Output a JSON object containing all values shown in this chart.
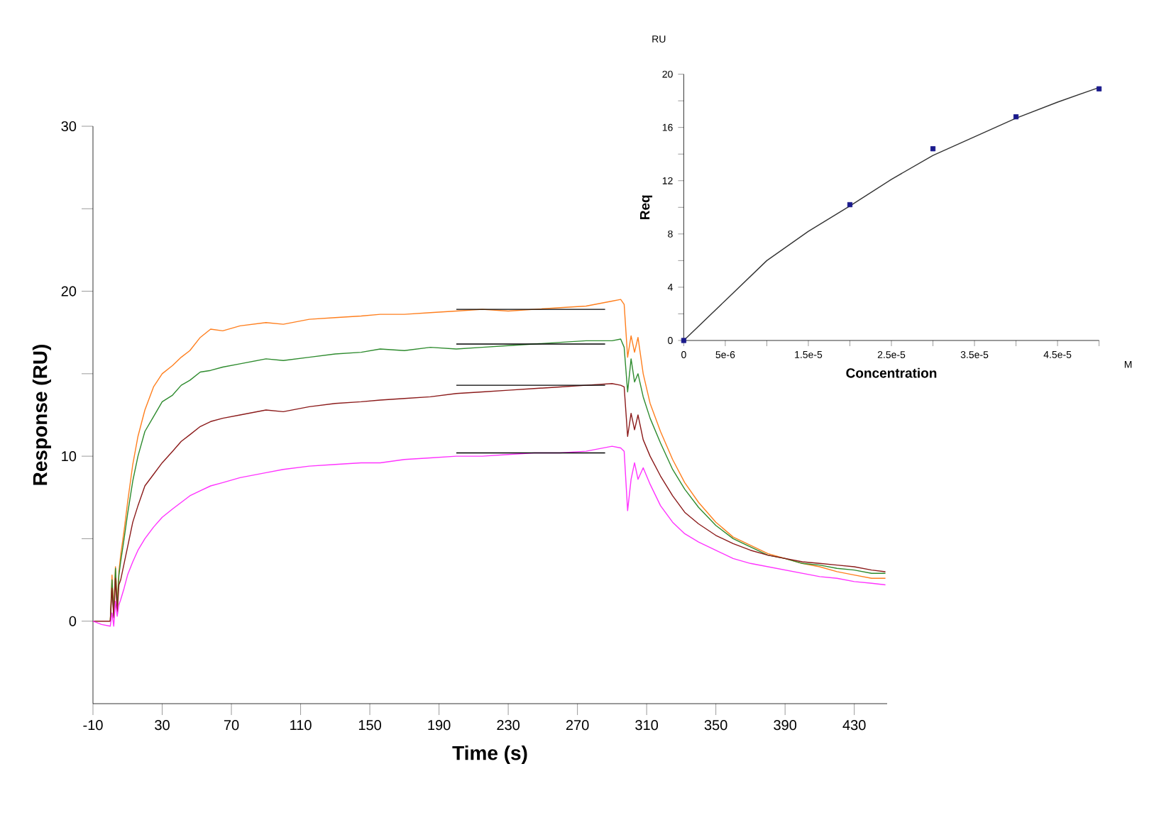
{
  "chart_data": [
    {
      "type": "line",
      "xlabel": "Time (s)",
      "ylabel": "Response (RU)",
      "xlim": [
        -10,
        449
      ],
      "ylim": [
        -5,
        30
      ],
      "xticks": [
        -10,
        30,
        70,
        110,
        150,
        190,
        230,
        270,
        310,
        350,
        390,
        430
      ],
      "yticks": [
        0,
        {
          "value": 5,
          "label": null
        },
        10,
        {
          "value": 15,
          "label": null
        },
        20,
        {
          "value": 25,
          "label": null
        },
        30
      ],
      "x": [
        -10,
        -5,
        0,
        1,
        2,
        3,
        4,
        5,
        6,
        8,
        10,
        13,
        16,
        20,
        25,
        30,
        36,
        41,
        46,
        52,
        58,
        65,
        75,
        90,
        100,
        115,
        130,
        145,
        156,
        170,
        185,
        200,
        215,
        230,
        245,
        260,
        275,
        290,
        295,
        297,
        299,
        301,
        303,
        305,
        308,
        312,
        318,
        325,
        332,
        340,
        350,
        360,
        370,
        380,
        390,
        400,
        410,
        420,
        430,
        440,
        448
      ],
      "series": [
        {
          "color": "#ff7f1e",
          "values": [
            null,
            null,
            0,
            2.8,
            0.5,
            3.3,
            1,
            3,
            4,
            5.5,
            7.2,
            9.5,
            11.2,
            12.8,
            14.2,
            15,
            15.5,
            16,
            16.4,
            17.2,
            17.7,
            17.6,
            17.9,
            18.1,
            18.0,
            18.3,
            18.4,
            18.5,
            18.6,
            18.6,
            18.7,
            18.8,
            18.9,
            18.8,
            18.9,
            19.0,
            19.1,
            19.4,
            19.5,
            19.2,
            16.0,
            17.3,
            16.3,
            17.2,
            15.0,
            13.2,
            11.5,
            9.8,
            8.4,
            7.2,
            6.0,
            5.1,
            4.6,
            4.1,
            3.8,
            3.5,
            3.3,
            3.0,
            2.8,
            2.6,
            2.6
          ]
        },
        {
          "color": "#2e8b2e",
          "values": [
            null,
            null,
            0,
            2.5,
            0.3,
            3.2,
            0.8,
            2.8,
            3.6,
            5.0,
            6.5,
            8.5,
            10.0,
            11.5,
            12.4,
            13.3,
            13.7,
            14.3,
            14.6,
            15.1,
            15.2,
            15.4,
            15.6,
            15.9,
            15.8,
            16.0,
            16.2,
            16.3,
            16.5,
            16.4,
            16.6,
            16.5,
            16.6,
            16.7,
            16.8,
            16.9,
            17.0,
            17.0,
            17.1,
            16.6,
            13.9,
            15.9,
            14.5,
            15.0,
            13.6,
            12.3,
            10.8,
            9.2,
            8.0,
            6.9,
            5.8,
            5.0,
            4.5,
            4.0,
            3.8,
            3.5,
            3.4,
            3.2,
            3.1,
            2.9,
            2.9
          ]
        },
        {
          "color": "#8b1a1a",
          "values": [
            0,
            0,
            0,
            2.0,
            0.2,
            2.6,
            0.5,
            2.2,
            2.5,
            3.5,
            4.5,
            6.0,
            7.0,
            8.2,
            8.9,
            9.6,
            10.3,
            10.9,
            11.3,
            11.8,
            12.1,
            12.3,
            12.5,
            12.8,
            12.7,
            13.0,
            13.2,
            13.3,
            13.4,
            13.5,
            13.6,
            13.8,
            13.9,
            14.0,
            14.1,
            14.2,
            14.3,
            14.4,
            14.3,
            14.2,
            11.2,
            12.6,
            11.6,
            12.5,
            11.0,
            10.0,
            8.8,
            7.6,
            6.6,
            5.9,
            5.2,
            4.7,
            4.3,
            4.0,
            3.8,
            3.6,
            3.5,
            3.4,
            3.3,
            3.1,
            3.0
          ]
        },
        {
          "color": "#ff33ff",
          "values": [
            0,
            -0.2,
            -0.3,
            0.5,
            -0.3,
            1.2,
            0.3,
            1.0,
            1.3,
            2.0,
            2.8,
            3.6,
            4.3,
            5.0,
            5.7,
            6.3,
            6.8,
            7.2,
            7.6,
            7.9,
            8.2,
            8.4,
            8.7,
            9.0,
            9.2,
            9.4,
            9.5,
            9.6,
            9.6,
            9.8,
            9.9,
            10.0,
            10.0,
            10.1,
            10.2,
            10.2,
            10.3,
            10.6,
            10.5,
            10.3,
            6.7,
            8.6,
            9.6,
            8.6,
            9.3,
            8.3,
            7.0,
            6.0,
            5.3,
            4.8,
            4.3,
            3.8,
            3.5,
            3.3,
            3.1,
            2.9,
            2.7,
            2.6,
            2.4,
            2.3,
            2.2
          ]
        },
        {
          "color": "#000000",
          "x": [
            200,
            286
          ],
          "values": [
            18.9,
            18.9
          ]
        },
        {
          "color": "#000000",
          "x": [
            200,
            286
          ],
          "values": [
            16.8,
            16.8
          ]
        },
        {
          "color": "#000000",
          "x": [
            200,
            286
          ],
          "values": [
            14.3,
            14.3
          ]
        },
        {
          "color": "#000000",
          "x": [
            200,
            286
          ],
          "values": [
            10.2,
            10.2
          ]
        }
      ]
    },
    {
      "type": "line",
      "xlabel": "Concentration",
      "ylabel": "Req",
      "annotations": [
        "RU",
        "M"
      ],
      "xlim": [
        0,
        5e-05
      ],
      "ylim": [
        0,
        20
      ],
      "xticks": [
        0,
        {
          "value": 5e-06,
          "label": "5e-6"
        },
        {
          "value": 1e-05,
          "label": null
        },
        {
          "value": 1.5e-05,
          "label": "1.5e-5"
        },
        {
          "value": 2e-05,
          "label": null
        },
        {
          "value": 2.5e-05,
          "label": "2.5e-5"
        },
        {
          "value": 3e-05,
          "label": null
        },
        {
          "value": 3.5e-05,
          "label": "3.5e-5"
        },
        {
          "value": 4e-05,
          "label": null
        },
        {
          "value": 4.5e-05,
          "label": "4.5e-5"
        },
        {
          "value": 5e-05,
          "label": null
        }
      ],
      "yticks": [
        0,
        {
          "value": 2,
          "label": null
        },
        4,
        {
          "value": 6,
          "label": null
        },
        8,
        {
          "value": 10,
          "label": null
        },
        12,
        {
          "value": 14,
          "label": null
        },
        16,
        {
          "value": 18,
          "label": null
        },
        20
      ],
      "series": [
        {
          "type": "line",
          "color": "#333333",
          "x": [
            0,
            5e-06,
            1e-05,
            1.5e-05,
            2e-05,
            2.5e-05,
            3e-05,
            3.5e-05,
            4e-05,
            4.5e-05,
            5e-05
          ],
          "values": [
            0,
            3.0,
            6.0,
            8.2,
            10.1,
            12.1,
            13.9,
            15.3,
            16.7,
            17.9,
            19.0
          ]
        },
        {
          "type": "scatter",
          "marker": "square",
          "color": "#1a1a8c",
          "x": [
            0,
            2e-05,
            3e-05,
            4e-05,
            5e-05
          ],
          "values": [
            0,
            10.2,
            14.4,
            16.8,
            18.9
          ]
        }
      ]
    }
  ]
}
